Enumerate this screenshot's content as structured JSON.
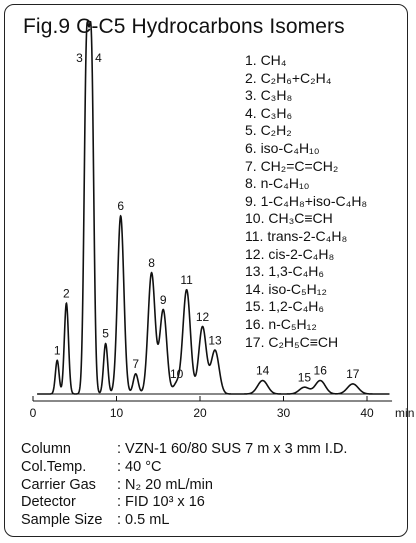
{
  "title": "Fig.9 C-C5 Hydrocarbons Isomers",
  "legend": [
    "1. CH₄",
    "2. C₂H₆+C₂H₄",
    "3. C₃H₈",
    "4. C₃H₆",
    "5. C₂H₂",
    "6. iso-C₄H₁₀",
    "7. CH₂=C=CH₂",
    "8. n-C₄H₁₀",
    "9. 1-C₄H₈+iso-C₄H₈",
    "10. CH₃C≡CH",
    "11. trans-2-C₄H₈",
    "12. cis-2-C₄H₈",
    "13. 1,3-C₄H₆",
    "14. iso-C₅H₁₂",
    "15. 1,2-C₄H₆",
    "16. n-C₅H₁₂",
    "17. C₂H₅C≡CH"
  ],
  "conditions": [
    {
      "key": "Column",
      "value": ": VZN-1 60/80 SUS 7 m x 3 mm I.D."
    },
    {
      "key": "Col.Temp.",
      "value": ": 40 °C"
    },
    {
      "key": "Carrier Gas",
      "value": ": N₂ 20 mL/min"
    },
    {
      "key": "Detector",
      "value": ": FID 10³ x 16"
    },
    {
      "key": "Sample Size",
      "value": ": 0.5 mL"
    }
  ],
  "chart_data": {
    "type": "line",
    "xlabel": "min",
    "xlim": [
      0,
      43
    ],
    "xticks": [
      0,
      10,
      20,
      30,
      40
    ],
    "ylim": [
      0,
      100
    ],
    "peaks": [
      {
        "label": "1",
        "time": 2.9,
        "height": 10,
        "width": 0.22
      },
      {
        "label": "2",
        "time": 4.0,
        "height": 27,
        "width": 0.25
      },
      {
        "label": "3",
        "time": 6.4,
        "height": 97,
        "width": 0.28
      },
      {
        "label": "4",
        "time": 7.0,
        "height": 97,
        "width": 0.28
      },
      {
        "label": "5",
        "time": 8.7,
        "height": 15,
        "width": 0.25
      },
      {
        "label": "6",
        "time": 10.5,
        "height": 53,
        "width": 0.38
      },
      {
        "label": "7",
        "time": 12.3,
        "height": 6,
        "width": 0.3
      },
      {
        "label": "8",
        "time": 14.2,
        "height": 36,
        "width": 0.42
      },
      {
        "label": "9",
        "time": 15.6,
        "height": 25,
        "width": 0.42
      },
      {
        "label": "10",
        "time": 17.2,
        "height": 3,
        "width": 0.4
      },
      {
        "label": "11",
        "time": 18.4,
        "height": 31,
        "width": 0.45
      },
      {
        "label": "12",
        "time": 20.3,
        "height": 20,
        "width": 0.45
      },
      {
        "label": "13",
        "time": 21.8,
        "height": 13,
        "width": 0.48
      },
      {
        "label": "14",
        "time": 27.5,
        "height": 4,
        "width": 0.6
      },
      {
        "label": "15",
        "time": 32.5,
        "height": 2,
        "width": 0.6
      },
      {
        "label": "16",
        "time": 34.4,
        "height": 4,
        "width": 0.6
      },
      {
        "label": "17",
        "time": 38.3,
        "height": 3,
        "width": 0.65
      }
    ]
  }
}
